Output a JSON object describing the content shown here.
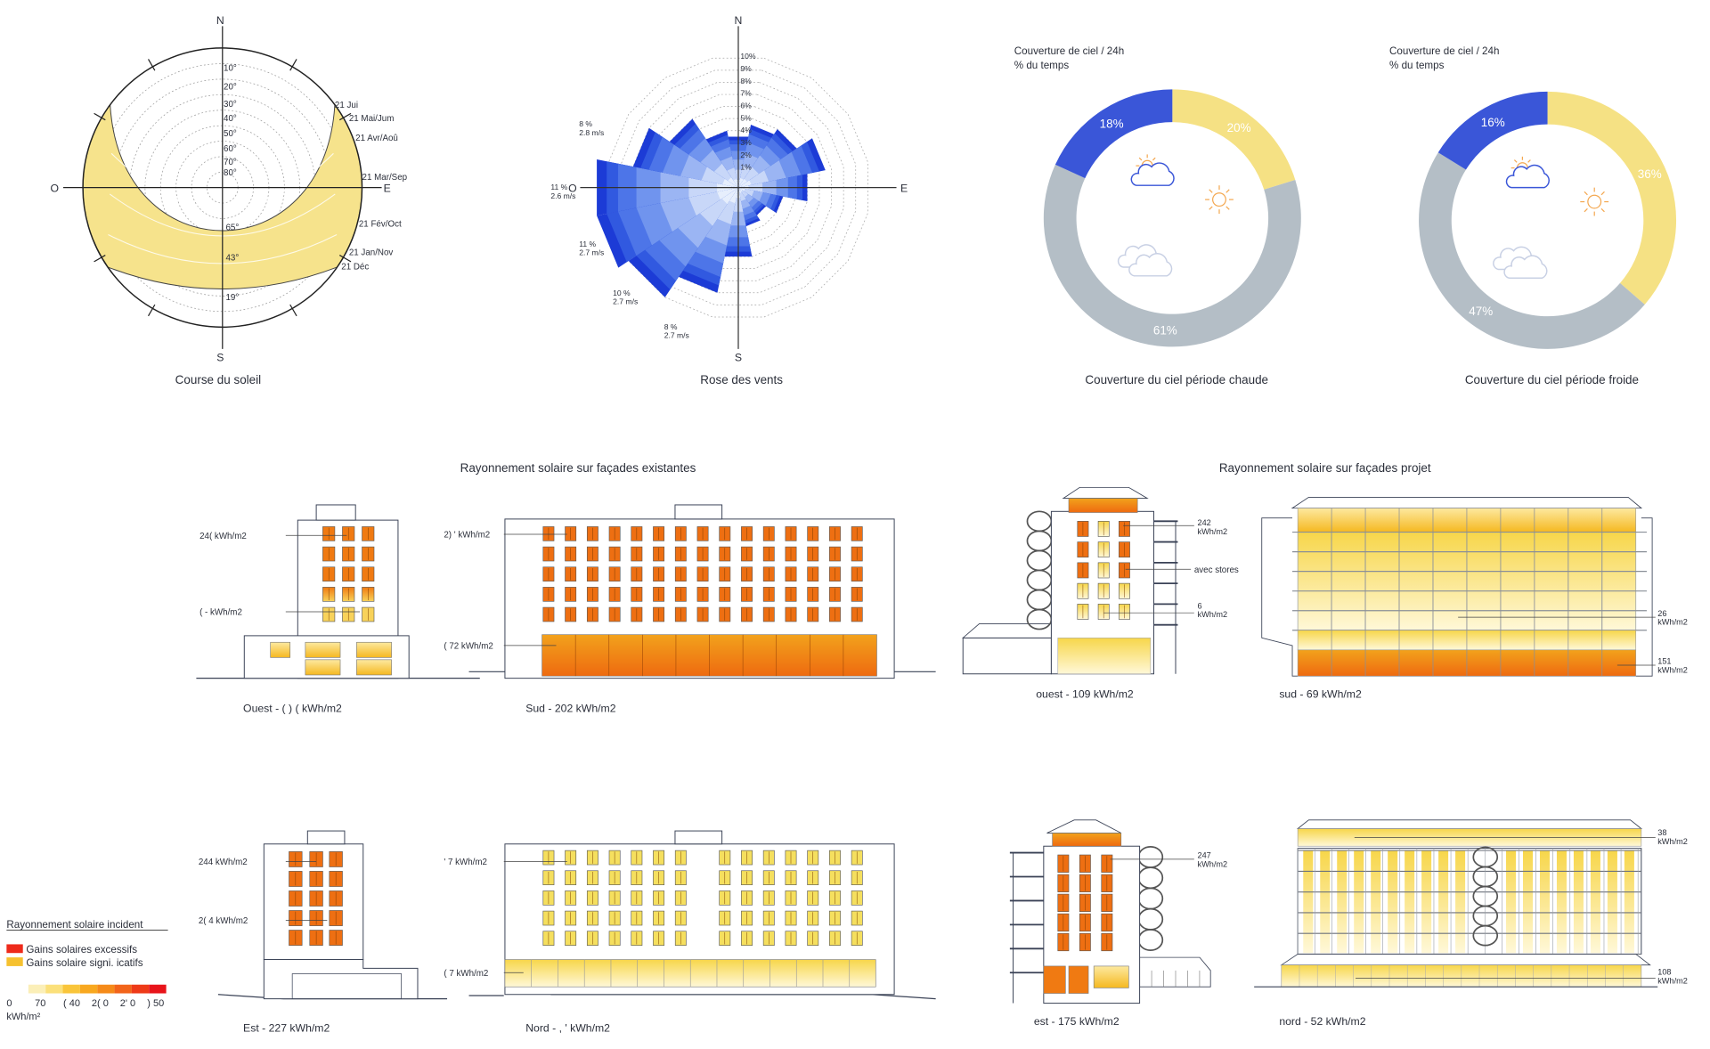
{
  "sun_path": {
    "caption": "Course du soleil",
    "compass": {
      "n": "N",
      "s": "S",
      "o": "O",
      "e": "E"
    },
    "altitude_labels": [
      "10°",
      "20°",
      "30°",
      "40°",
      "50°",
      "60°",
      "70°",
      "80°"
    ],
    "noon_labels": [
      "65°",
      "43°",
      "19°"
    ],
    "date_labels": [
      "21 Jui",
      "21 Mai/Jum",
      "21 Avr/Aoû",
      "21 Mar/Sep",
      "21 Fév/Oct",
      "21 Jan/Nov",
      "21 Déc"
    ],
    "band_color": "#f6e38c"
  },
  "wind_rose": {
    "caption": "Rose des vents",
    "compass": {
      "n": "N",
      "s": "S",
      "o": "O",
      "e": "E"
    },
    "ring_labels": [
      "1%",
      "2%",
      "3%",
      "4%",
      "5%",
      "6%",
      "7%",
      "8%",
      "9%",
      "10%"
    ],
    "annotations": [
      {
        "dir": "WNW",
        "pct": "8 %",
        "speed": "2.8 m/s"
      },
      {
        "dir": "W",
        "pct": "11 %",
        "speed": "2.6 m/s"
      },
      {
        "dir": "WSW",
        "pct": "11 %",
        "speed": "2.7 m/s"
      },
      {
        "dir": "SW",
        "pct": "10 %",
        "speed": "2.7 m/s"
      },
      {
        "dir": "SSW",
        "pct": "8 %",
        "speed": "2.7 m/s"
      }
    ],
    "color": "#1c3bd6"
  },
  "chart_data": [
    {
      "type": "wind-rose",
      "unit": "% du temps",
      "directions": [
        "N",
        "NNE",
        "NE",
        "ENE",
        "E",
        "ESE",
        "SE",
        "SSE",
        "S",
        "SSW",
        "SW",
        "WSW",
        "W",
        "WNW",
        "NW",
        "NNW"
      ],
      "values": [
        3.5,
        4.5,
        5,
        6.5,
        5,
        3,
        2,
        2.5,
        5,
        8,
        10,
        11,
        11,
        8,
        6,
        4
      ],
      "rlim": [
        0,
        10
      ]
    },
    {
      "type": "pie",
      "title": "Couverture de ciel / 24h",
      "subtitle": "% du temps",
      "caption": "Couverture du ciel période chaude",
      "segments": [
        {
          "label": "20%",
          "value": 20,
          "color": "#f5e184",
          "icon": "sun-icon"
        },
        {
          "label": "61%",
          "value": 61,
          "color": "#b4bec6",
          "icon": "clouds-icon"
        },
        {
          "label": "18%",
          "value": 18,
          "color": "#3a56d8",
          "icon": "partly-cloudy-icon"
        }
      ]
    },
    {
      "type": "pie",
      "title": "Couverture de ciel / 24h",
      "subtitle": "% du temps",
      "caption": "Couverture du ciel période froide",
      "segments": [
        {
          "label": "36%",
          "value": 36,
          "color": "#f5e184",
          "icon": "sun-icon"
        },
        {
          "label": "47%",
          "value": 47,
          "color": "#b4bec6",
          "icon": "clouds-icon"
        },
        {
          "label": "16%",
          "value": 16,
          "color": "#3a56d8",
          "icon": "partly-cloudy-icon"
        }
      ]
    }
  ],
  "facades": {
    "existing_title": "Rayonnement solaire sur façades existantes",
    "project_title": "Rayonnement solaire sur façades projet",
    "existing": {
      "ouest": {
        "caption": "Ouest - ( ) (  kWh/m2",
        "labels": [
          "24(  kWh/m2",
          "( -  kWh/m2"
        ]
      },
      "sud": {
        "caption": "Sud - 202 kWh/m2",
        "labels": [
          "2) '  kWh/m2",
          "( 72 kWh/m2"
        ]
      },
      "est": {
        "caption": "Est - 227 kWh/m2",
        "labels": [
          "244 kWh/m2",
          "2( 4 kWh/m2"
        ]
      },
      "nord": {
        "caption": "Nord - , '  kWh/m2",
        "labels": [
          "' 7 kWh/m2",
          "( 7 kWh/m2"
        ]
      }
    },
    "project": {
      "ouest": {
        "caption": "ouest - 109 kWh/m2",
        "labels": [
          {
            "value": "242",
            "unit": "kWh/m2"
          },
          {
            "value": "avec stores",
            "unit": ""
          },
          {
            "value": "6",
            "unit": "kWh/m2"
          }
        ]
      },
      "sud": {
        "caption": "sud - 69 kWh/m2",
        "labels": [
          {
            "value": "26",
            "unit": "kWh/m2"
          },
          {
            "value": "151",
            "unit": "kWh/m2"
          }
        ]
      },
      "est": {
        "caption": "est - 175 kWh/m2",
        "labels": [
          {
            "value": "247",
            "unit": "kWh/m2"
          }
        ]
      },
      "nord": {
        "caption": "nord - 52 kWh/m2",
        "labels": [
          {
            "value": "38",
            "unit": "kWh/m2"
          },
          {
            "value": "108",
            "unit": "kWh/m2"
          }
        ]
      }
    }
  },
  "legend": {
    "title": "Rayonnement solaire incident",
    "items": [
      {
        "label": "Gains solaires excessifs",
        "color": "#ee2a1b"
      },
      {
        "label": "Gains solaire signi. icatifs",
        "color": "#f6c12f"
      }
    ],
    "scale_colors": [
      "#fbefb8",
      "#fbe07a",
      "#f9c53a",
      "#f8a81f",
      "#f58a19",
      "#f2641a",
      "#ee3a18",
      "#e8141a"
    ],
    "scale_ticks": [
      "0",
      "70",
      "( 40",
      "2( 0",
      "2' 0",
      ") 50"
    ],
    "unit": "kWh/m²"
  }
}
